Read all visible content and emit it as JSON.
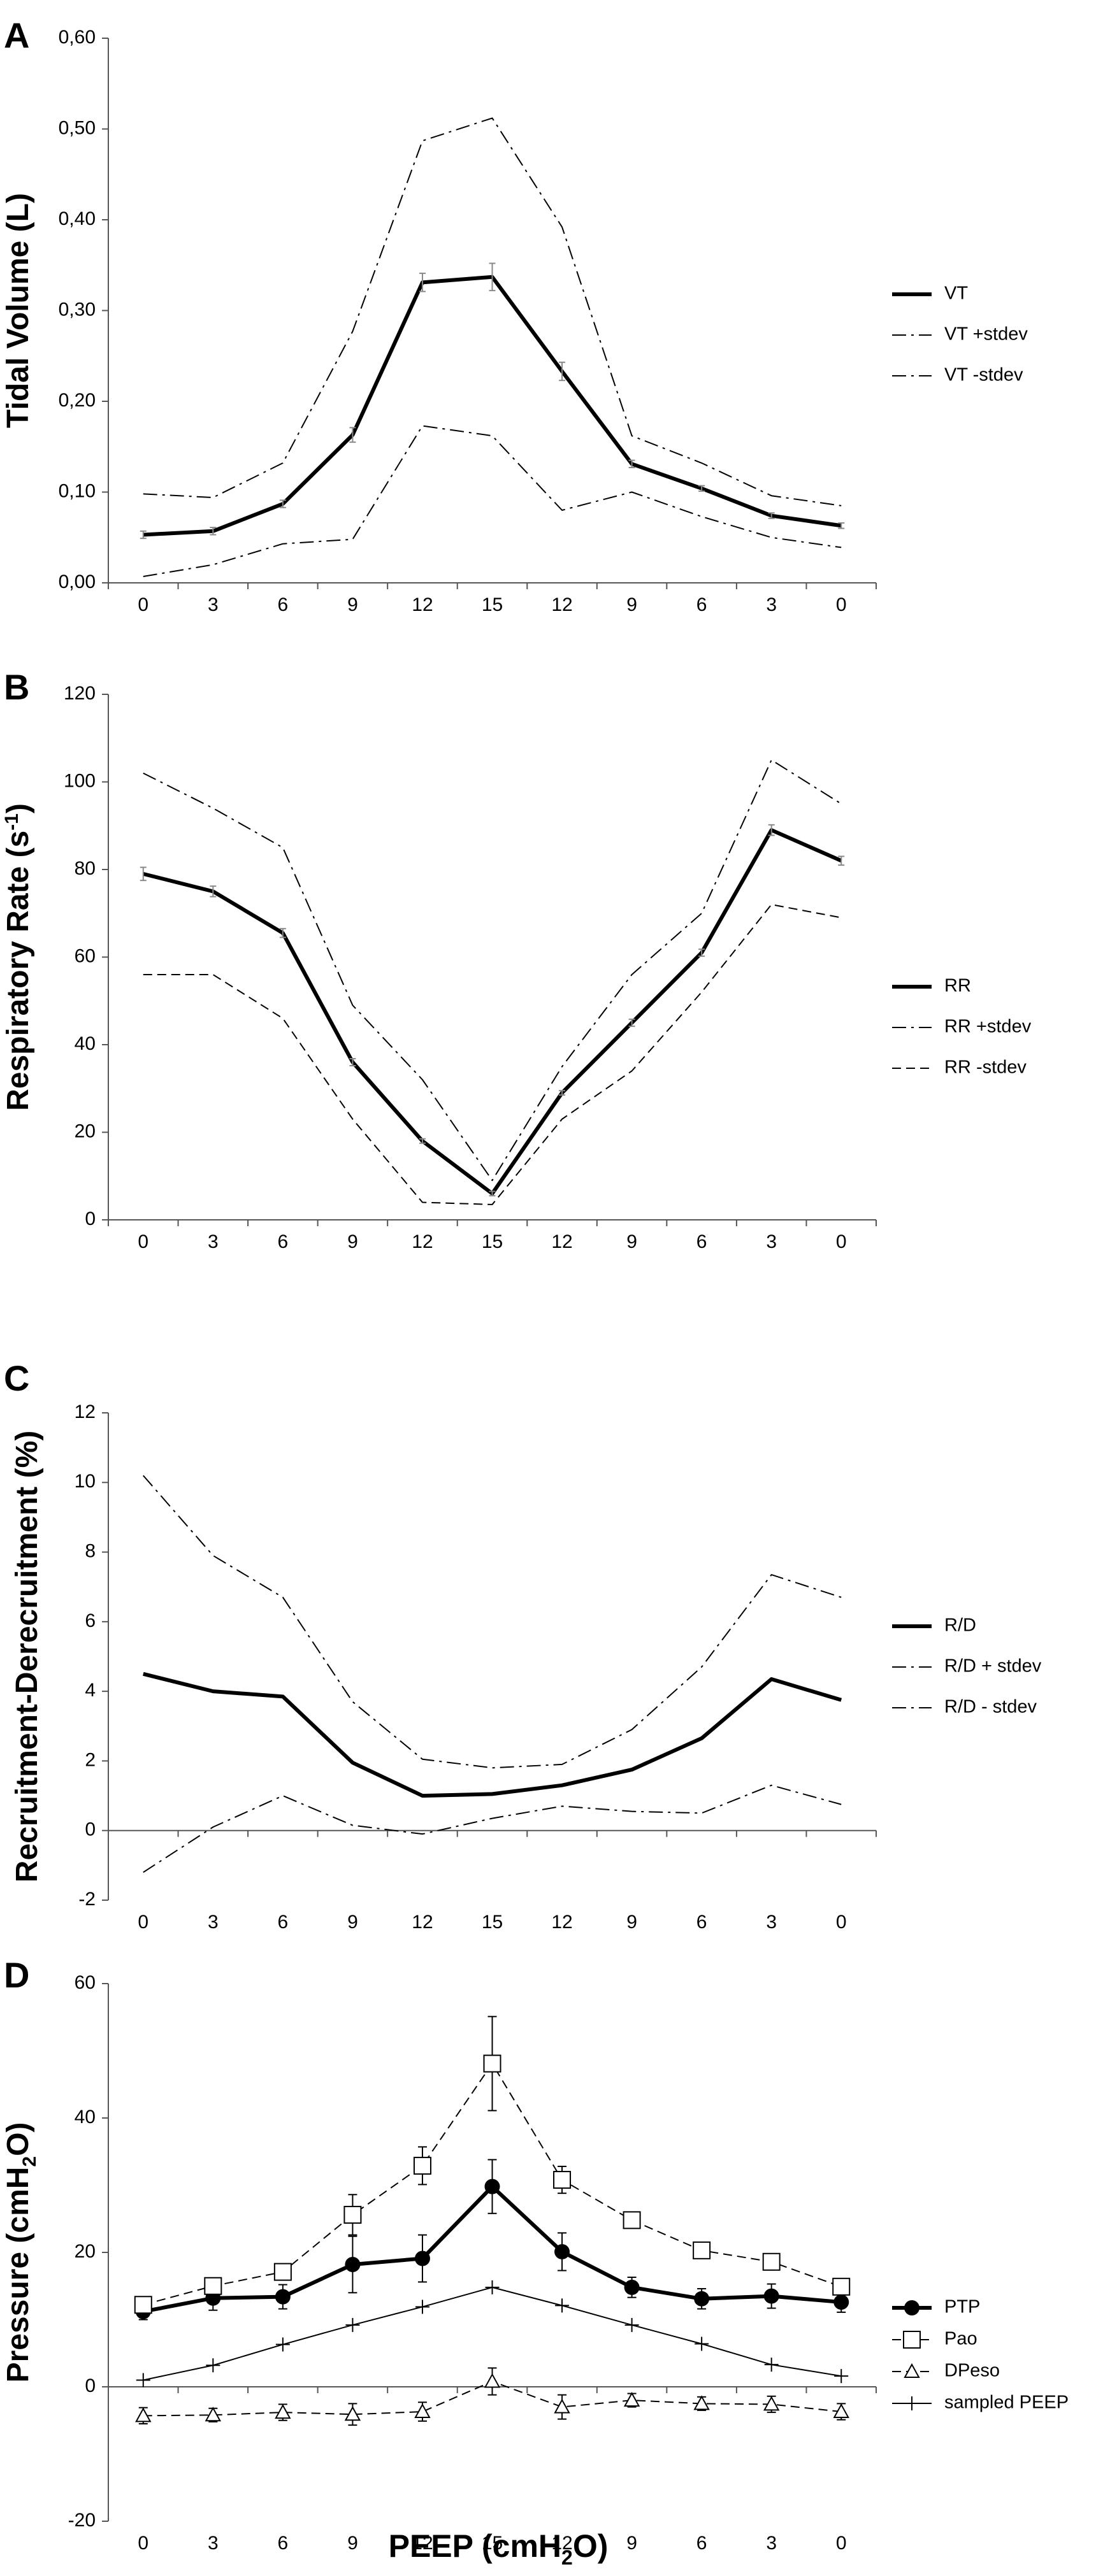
{
  "figure": {
    "xlabel_main": "PEEP (cmH",
    "xlabel_sub": "2",
    "xlabel_end": "O)"
  },
  "chart_data": [
    {
      "type": "line",
      "panel": "A",
      "ylabel": "Tidal Volume (L)",
      "ylim": [
        0,
        0.6
      ],
      "yticks": [
        "0,00",
        "0,10",
        "0,20",
        "0,30",
        "0,40",
        "0,50",
        "0,60"
      ],
      "categories": [
        "0",
        "3",
        "6",
        "9",
        "12",
        "15",
        "12",
        "9",
        "6",
        "3",
        "0"
      ],
      "series": [
        {
          "name": "VT",
          "style": "solid-thick",
          "values": [
            0.053,
            0.057,
            0.087,
            0.163,
            0.331,
            0.337,
            0.233,
            0.131,
            0.104,
            0.074,
            0.063
          ],
          "errors": [
            0.004,
            0.004,
            0.004,
            0.008,
            0.01,
            0.015,
            0.01,
            0.004,
            0.003,
            0.003,
            0.003
          ]
        },
        {
          "name": "VT +stdev",
          "style": "dashdot",
          "values": [
            0.098,
            0.094,
            0.132,
            0.277,
            0.487,
            0.512,
            0.392,
            0.162,
            0.132,
            0.096,
            0.085
          ]
        },
        {
          "name": "VT -stdev",
          "style": "dashdot",
          "values": [
            0.007,
            0.02,
            0.043,
            0.048,
            0.173,
            0.162,
            0.08,
            0.1,
            0.073,
            0.05,
            0.039
          ]
        }
      ],
      "legend": [
        "VT",
        "VT +stdev",
        "VT -stdev"
      ]
    },
    {
      "type": "line",
      "panel": "B",
      "ylabel": "Respiratory Rate (s",
      "ylabel_sup": "-1",
      "ylabel_end": ")",
      "ylim": [
        0,
        120
      ],
      "yticks": [
        "0",
        "20",
        "40",
        "60",
        "80",
        "100",
        "120"
      ],
      "categories": [
        "0",
        "3",
        "6",
        "9",
        "12",
        "15",
        "12",
        "9",
        "6",
        "3",
        "0"
      ],
      "series": [
        {
          "name": "RR",
          "style": "solid-thick",
          "values": [
            79,
            75,
            65.5,
            36,
            18,
            6,
            29,
            45,
            61,
            89,
            82
          ],
          "errors": [
            1.5,
            1.2,
            1.0,
            0.8,
            0.5,
            0.5,
            0.5,
            0.8,
            0.8,
            1.2,
            1.0
          ]
        },
        {
          "name": "RR +stdev",
          "style": "dashdot",
          "values": [
            102,
            94,
            85,
            49,
            32,
            9,
            35,
            56,
            70,
            105,
            95
          ]
        },
        {
          "name": "RR -stdev",
          "style": "dashed",
          "values": [
            56,
            56,
            46,
            23,
            4,
            3.5,
            23,
            34,
            52,
            72,
            69
          ]
        }
      ],
      "legend": [
        "RR",
        "RR +stdev",
        "RR -stdev"
      ]
    },
    {
      "type": "line",
      "panel": "C",
      "ylabel": "Recruitment-Derecruitment (%)",
      "ylim": [
        -2,
        12
      ],
      "yticks": [
        "-2",
        "0",
        "2",
        "4",
        "6",
        "8",
        "10",
        "12"
      ],
      "categories": [
        "0",
        "3",
        "6",
        "9",
        "12",
        "15",
        "12",
        "9",
        "6",
        "3",
        "0"
      ],
      "series": [
        {
          "name": "R/D",
          "style": "solid-thick",
          "values": [
            4.5,
            4.0,
            3.85,
            1.95,
            1.0,
            1.05,
            1.3,
            1.75,
            2.65,
            4.35,
            3.75
          ]
        },
        {
          "name": "R/D + stdev",
          "style": "dashdot",
          "values": [
            10.2,
            7.9,
            6.7,
            3.7,
            2.05,
            1.8,
            1.9,
            2.9,
            4.7,
            7.35,
            6.7
          ]
        },
        {
          "name": "R/D - stdev",
          "style": "dashdot",
          "values": [
            -1.2,
            0.1,
            1.0,
            0.15,
            -0.1,
            0.35,
            0.7,
            0.55,
            0.5,
            1.3,
            0.75
          ]
        }
      ],
      "legend": [
        "R/D",
        "R/D + stdev",
        "R/D - stdev"
      ]
    },
    {
      "type": "line",
      "panel": "D",
      "ylabel": "Pressure (cmH",
      "ylabel_sub": "2",
      "ylabel_end": "O)",
      "ylim": [
        -20,
        60
      ],
      "yticks": [
        "-20",
        "0",
        "20",
        "40",
        "60"
      ],
      "categories": [
        "0",
        "3",
        "6",
        "9",
        "12",
        "15",
        "12",
        "9",
        "6",
        "3",
        "0"
      ],
      "series": [
        {
          "name": "PTP",
          "style": "solid-thick-circle",
          "values": [
            11.2,
            13.2,
            13.4,
            18.2,
            19.1,
            29.8,
            20.1,
            14.8,
            13.1,
            13.5,
            12.6
          ],
          "errors": [
            1.2,
            1.8,
            1.8,
            4.2,
            3.5,
            4.0,
            2.8,
            1.5,
            1.5,
            1.8,
            1.5
          ]
        },
        {
          "name": "Pao",
          "style": "dashed-square",
          "values": [
            12.2,
            15.0,
            17.1,
            25.6,
            32.9,
            48.1,
            30.8,
            24.8,
            20.3,
            18.6,
            14.9
          ],
          "errors": [
            1.0,
            1.0,
            1.0,
            3.0,
            2.8,
            7.0,
            2.0,
            1.2,
            0.8,
            0.8,
            1.0
          ]
        },
        {
          "name": "DPeso",
          "style": "dashed-triangle",
          "values": [
            -4.3,
            -4.2,
            -3.8,
            -4.1,
            -3.7,
            0.8,
            -3.0,
            -2.0,
            -2.5,
            -2.6,
            -3.7
          ],
          "errors": [
            1.2,
            1.0,
            1.2,
            1.6,
            1.4,
            2.0,
            1.8,
            1.0,
            1.0,
            1.2,
            1.2
          ]
        },
        {
          "name": "sampled PEEP",
          "style": "solid-plus",
          "values": [
            1.0,
            3.2,
            6.3,
            9.2,
            11.9,
            14.8,
            12.1,
            9.2,
            6.4,
            3.3,
            1.6
          ]
        }
      ],
      "legend": [
        "PTP",
        "Pao",
        "DPeso",
        "sampled PEEP"
      ]
    }
  ]
}
